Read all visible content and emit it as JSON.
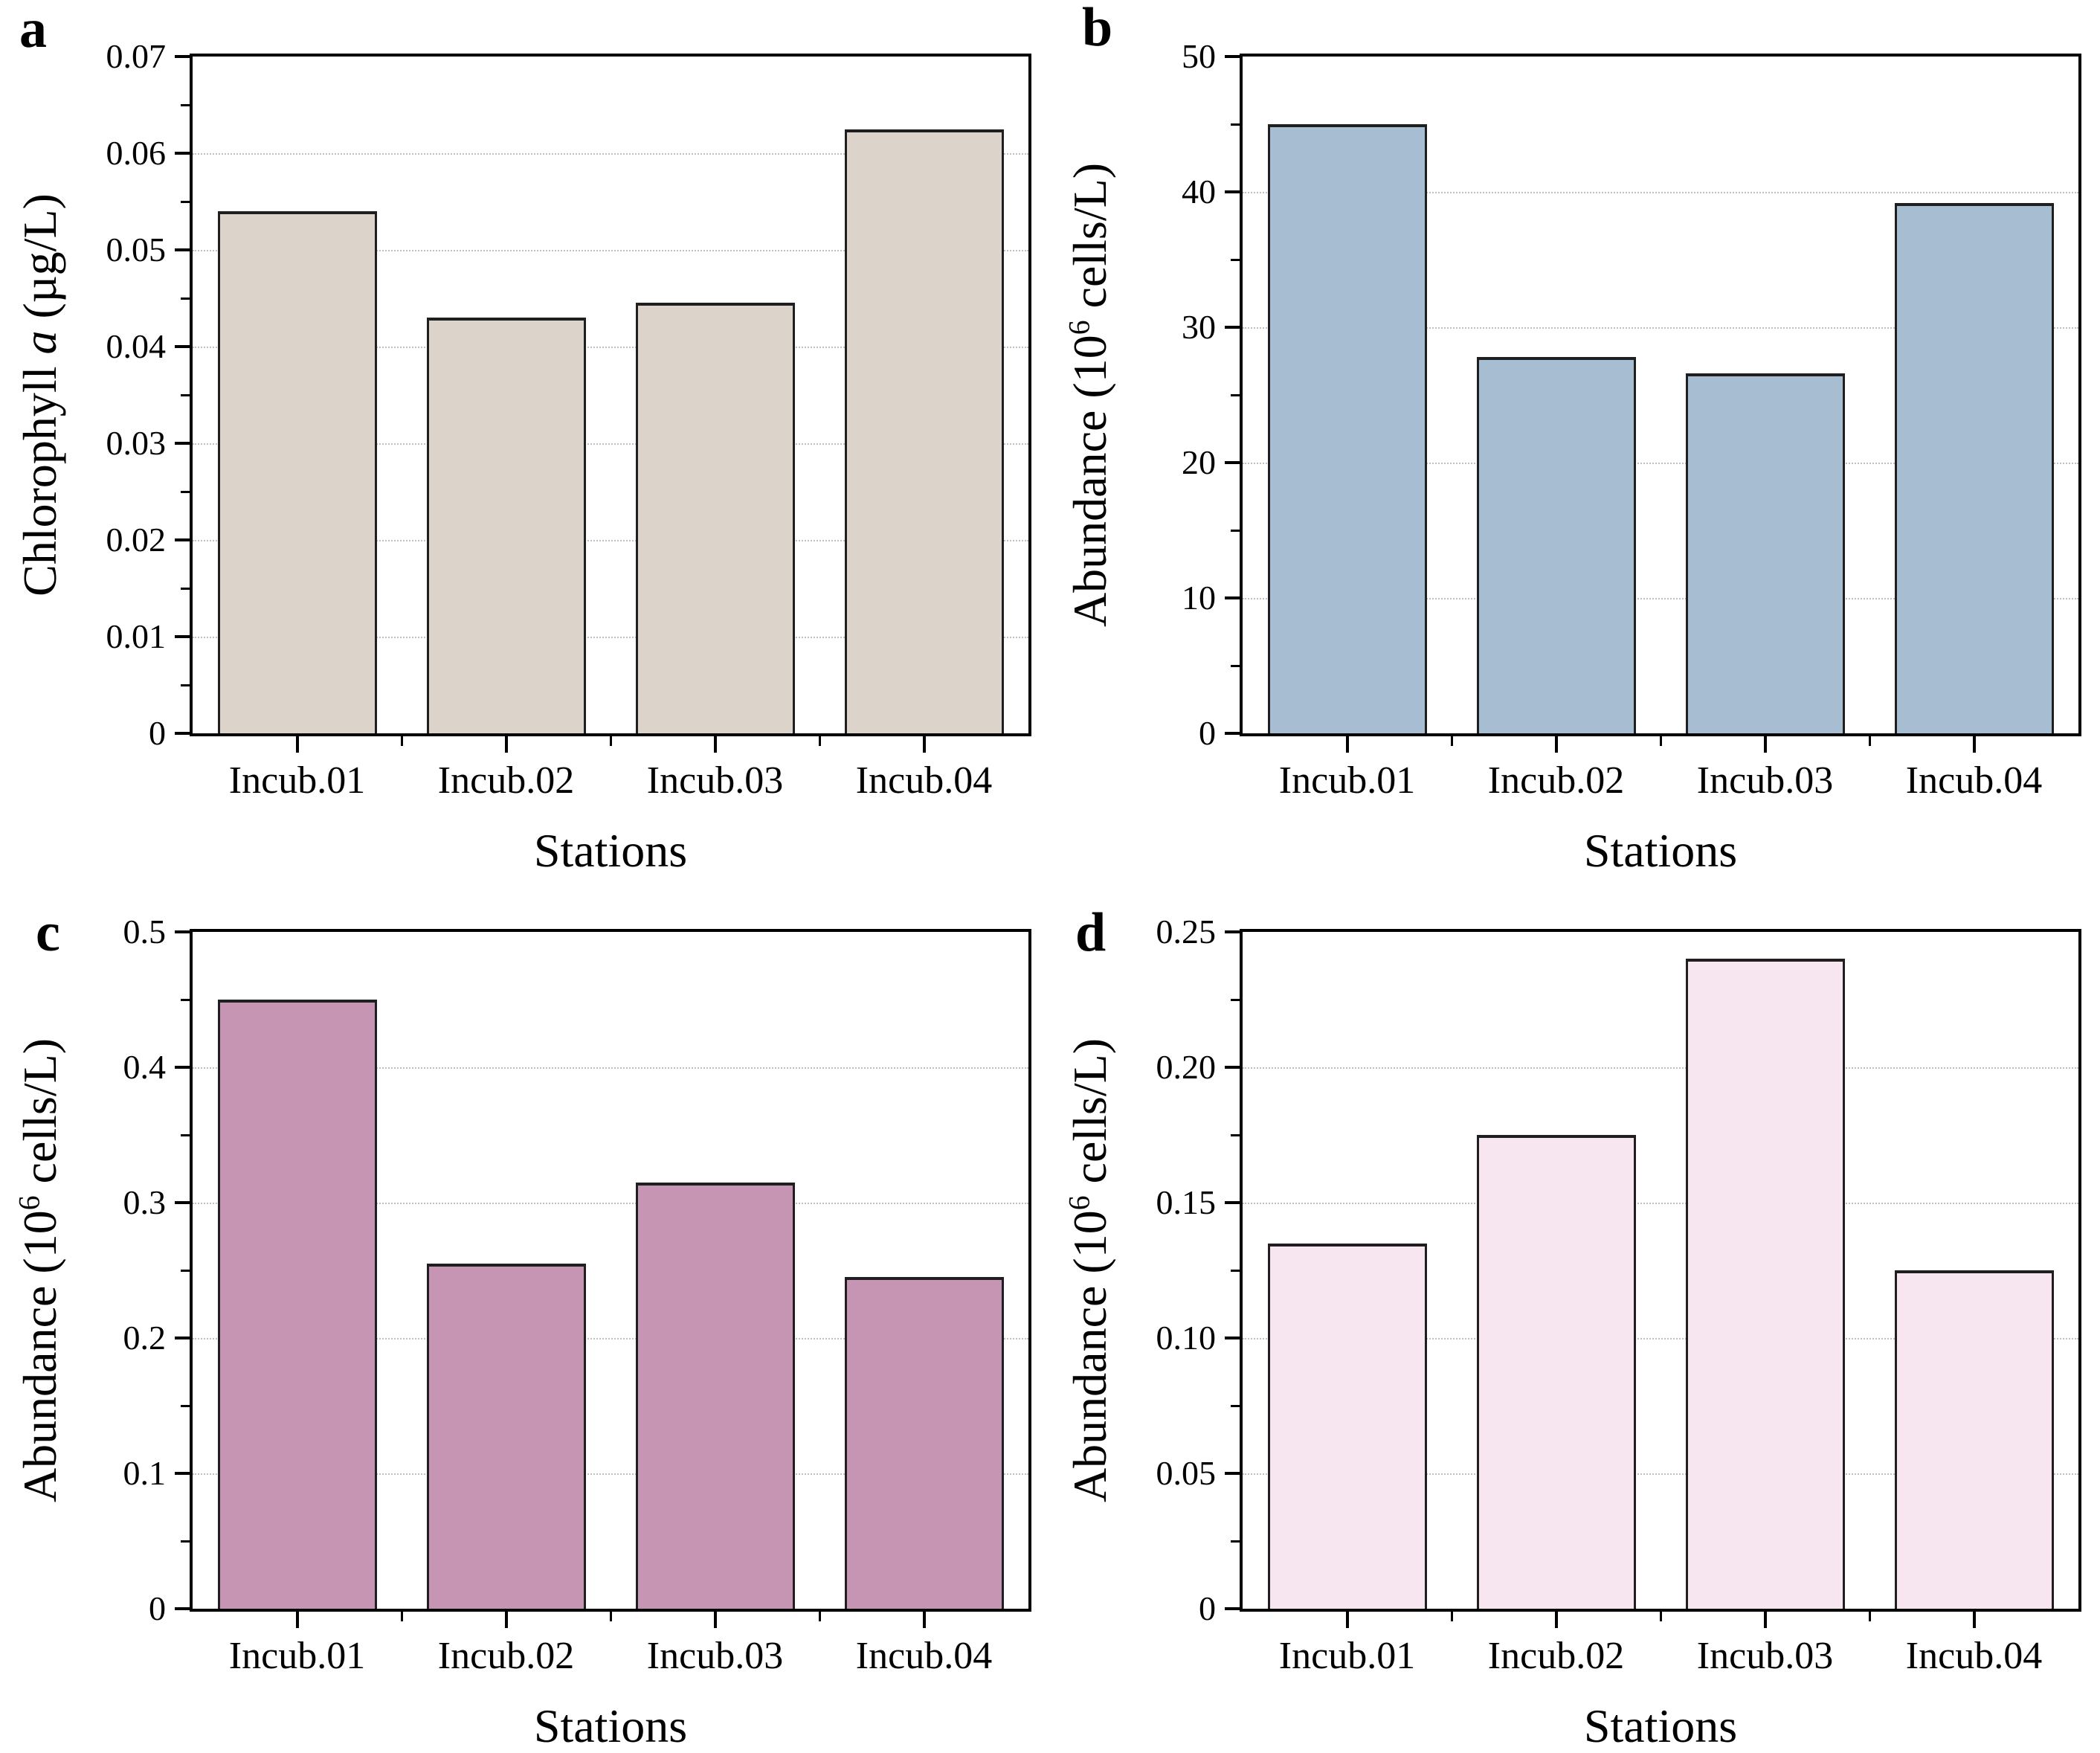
{
  "figure": {
    "kind": "four-panel bar chart figure",
    "shared_xlabel": "Stations",
    "categories": [
      "Incub.01",
      "Incub.02",
      "Incub.03",
      "Incub.04"
    ],
    "text_color": "#000000",
    "grid_color": "#c0c0c0",
    "frame_color": "#000000"
  },
  "chart_data": [
    {
      "type": "bar",
      "panel_label": "a",
      "title": "",
      "ylabel": "Chlorophyll a (µg/L)",
      "ylabel_segments": [
        {
          "text": "Chlorophyll "
        },
        {
          "text": "a",
          "style": "italic"
        },
        {
          "text": " (µg/L)"
        }
      ],
      "xlabel": "Stations",
      "categories": [
        "Incub.01",
        "Incub.02",
        "Incub.03",
        "Incub.04"
      ],
      "values": [
        0.054,
        0.043,
        0.0445,
        0.0625
      ],
      "ylim": [
        0,
        0.07
      ],
      "y_major_step": 0.01,
      "y_minor_step": 0.005,
      "y_tick_labels": [
        "0",
        "0.01",
        "0.02",
        "0.03",
        "0.04",
        "0.05",
        "0.06",
        "0.07"
      ],
      "grid": "horizontal dotted lines at major ticks",
      "legend": "none",
      "bar_fill": "#dcd3ca",
      "bar_edge": "#1f1f1f"
    },
    {
      "type": "bar",
      "panel_label": "b",
      "title": "",
      "ylabel": "Abundance (10⁶ cells/L)",
      "ylabel_segments": [
        {
          "text": "Abundance (10"
        },
        {
          "text": "6",
          "style": "sup"
        },
        {
          "text": " cells/L)"
        }
      ],
      "xlabel": "Stations",
      "categories": [
        "Incub.01",
        "Incub.02",
        "Incub.03",
        "Incub.04"
      ],
      "values": [
        45,
        27.8,
        26.6,
        39.2
      ],
      "ylim": [
        0,
        50
      ],
      "y_major_step": 10,
      "y_minor_step": 5,
      "y_tick_labels": [
        "0",
        "10",
        "20",
        "30",
        "40",
        "50"
      ],
      "grid": "horizontal dotted lines at major ticks",
      "legend": "none",
      "bar_fill": "#a7bdd2",
      "bar_edge": "#1f1f1f"
    },
    {
      "type": "bar",
      "panel_label": "c",
      "title": "",
      "ylabel": "Abundance (10⁶ cells/L)",
      "ylabel_segments": [
        {
          "text": "Abundance (10"
        },
        {
          "text": "6",
          "style": "sup"
        },
        {
          "text": " cells/L)"
        }
      ],
      "xlabel": "Stations",
      "categories": [
        "Incub.01",
        "Incub.02",
        "Incub.03",
        "Incub.04"
      ],
      "values": [
        0.45,
        0.255,
        0.315,
        0.245
      ],
      "ylim": [
        0,
        0.5
      ],
      "y_major_step": 0.1,
      "y_minor_step": 0.05,
      "y_tick_labels": [
        "0",
        "0.1",
        "0.2",
        "0.3",
        "0.4",
        "0.5"
      ],
      "grid": "horizontal dotted lines at major ticks",
      "legend": "none",
      "bar_fill": "#c795b4",
      "bar_edge": "#1f1f1f"
    },
    {
      "type": "bar",
      "panel_label": "d",
      "title": "",
      "ylabel": "Abundance (10⁶ cells/L)",
      "ylabel_segments": [
        {
          "text": "Abundance (10"
        },
        {
          "text": "6",
          "style": "sup"
        },
        {
          "text": " cells/L)"
        }
      ],
      "xlabel": "Stations",
      "categories": [
        "Incub.01",
        "Incub.02",
        "Incub.03",
        "Incub.04"
      ],
      "values": [
        0.135,
        0.175,
        0.24,
        0.125
      ],
      "ylim": [
        0,
        0.25
      ],
      "y_major_step": 0.05,
      "y_minor_step": 0.025,
      "y_tick_labels": [
        "0",
        "0.05",
        "0.10",
        "0.15",
        "0.20",
        "0.25"
      ],
      "grid": "horizontal dotted lines at major ticks",
      "legend": "none",
      "bar_fill": "#f7e6ef",
      "bar_edge": "#1f1f1f"
    }
  ]
}
